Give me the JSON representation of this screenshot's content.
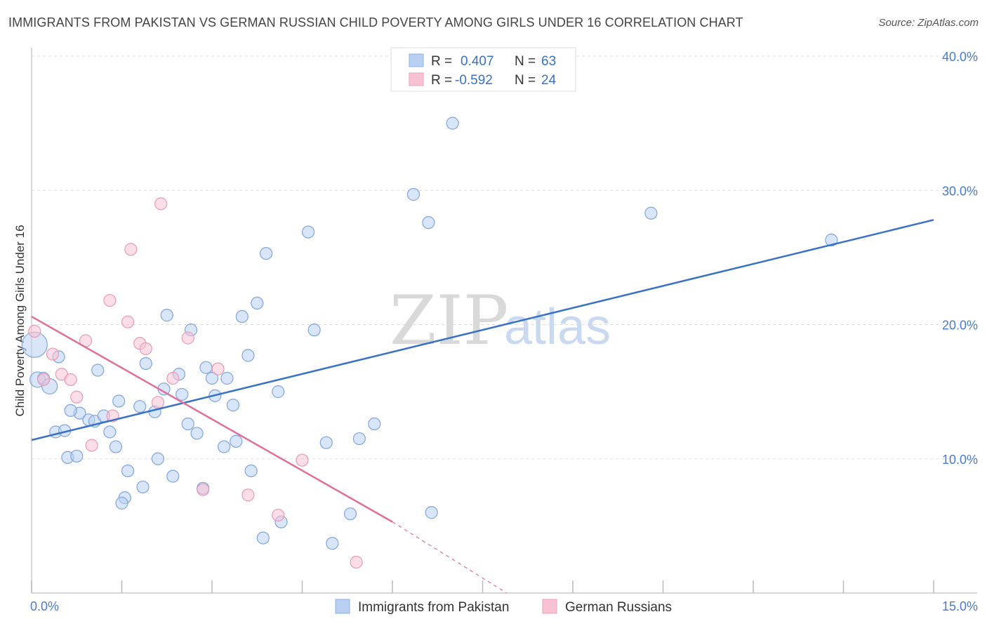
{
  "title": "IMMIGRANTS FROM PAKISTAN VS GERMAN RUSSIAN CHILD POVERTY AMONG GIRLS UNDER 16 CORRELATION CHART",
  "source": "Source: ZipAtlas.com",
  "watermark": {
    "zip": "ZIP",
    "atlas": "atlas"
  },
  "colors": {
    "blue": "#3a72c8",
    "pink": "#e07098",
    "blue_fill": "#b9d0f2",
    "pink_fill": "#f7c3d3",
    "grid": "#dddddd"
  },
  "stats_box": {
    "rows": [
      {
        "r_label": "R =",
        "r_value": "0.407",
        "n_label": "N =",
        "n_value": "63"
      },
      {
        "r_label": "R =",
        "r_value": "-0.592",
        "n_label": "N =",
        "n_value": "24"
      }
    ]
  },
  "chart_data": {
    "type": "scatter",
    "title": "IMMIGRANTS FROM PAKISTAN VS GERMAN RUSSIAN CHILD POVERTY AMONG GIRLS UNDER 16 CORRELATION CHART",
    "xlabel": "",
    "ylabel": "Child Poverty Among Girls Under 16",
    "xlim": [
      0,
      15
    ],
    "ylim": [
      0,
      40
    ],
    "x_tick_labels": [
      "0.0%",
      "15.0%"
    ],
    "y_ticks": [
      10,
      20,
      30,
      40
    ],
    "y_tick_labels": [
      "10.0%",
      "20.0%",
      "30.0%",
      "40.0%"
    ],
    "grid": true,
    "legend_position": "bottom-center",
    "series": [
      {
        "name": "Immigrants from Pakistan",
        "color": "#3a72c8",
        "r": 0.407,
        "n": 63,
        "trend": {
          "x": [
            0,
            15
          ],
          "y": [
            11.4,
            27.8
          ]
        },
        "points": [
          [
            0.05,
            18.5
          ],
          [
            0.1,
            15.9
          ],
          [
            0.2,
            16.0
          ],
          [
            0.3,
            15.4
          ],
          [
            0.45,
            17.6
          ],
          [
            0.4,
            12.0
          ],
          [
            0.55,
            12.1
          ],
          [
            0.6,
            10.1
          ],
          [
            0.75,
            10.2
          ],
          [
            0.8,
            13.4
          ],
          [
            0.65,
            13.6
          ],
          [
            0.95,
            12.9
          ],
          [
            1.05,
            12.8
          ],
          [
            1.1,
            16.6
          ],
          [
            1.2,
            13.2
          ],
          [
            1.3,
            12.0
          ],
          [
            1.4,
            10.9
          ],
          [
            1.45,
            14.3
          ],
          [
            1.6,
            9.1
          ],
          [
            1.55,
            7.1
          ],
          [
            1.5,
            6.7
          ],
          [
            1.8,
            13.9
          ],
          [
            1.85,
            7.9
          ],
          [
            1.9,
            17.1
          ],
          [
            2.05,
            13.5
          ],
          [
            2.1,
            10.0
          ],
          [
            2.2,
            15.2
          ],
          [
            2.25,
            20.7
          ],
          [
            2.35,
            8.7
          ],
          [
            2.45,
            16.3
          ],
          [
            2.5,
            14.8
          ],
          [
            2.6,
            12.6
          ],
          [
            2.65,
            19.6
          ],
          [
            2.75,
            11.9
          ],
          [
            2.85,
            7.8
          ],
          [
            2.9,
            16.8
          ],
          [
            3.0,
            16.0
          ],
          [
            3.05,
            14.7
          ],
          [
            3.2,
            10.9
          ],
          [
            3.25,
            16.0
          ],
          [
            3.35,
            14.0
          ],
          [
            3.4,
            11.3
          ],
          [
            3.5,
            20.6
          ],
          [
            3.6,
            17.7
          ],
          [
            3.65,
            9.1
          ],
          [
            3.75,
            21.6
          ],
          [
            3.85,
            4.1
          ],
          [
            3.9,
            25.3
          ],
          [
            4.1,
            15.0
          ],
          [
            4.15,
            5.3
          ],
          [
            4.6,
            26.9
          ],
          [
            4.7,
            19.6
          ],
          [
            4.9,
            11.2
          ],
          [
            5.0,
            3.7
          ],
          [
            5.3,
            5.9
          ],
          [
            5.45,
            11.5
          ],
          [
            5.7,
            12.6
          ],
          [
            6.35,
            29.7
          ],
          [
            6.6,
            27.6
          ],
          [
            6.65,
            6.0
          ],
          [
            7.0,
            35.0
          ],
          [
            10.3,
            28.3
          ],
          [
            13.3,
            26.3
          ]
        ]
      },
      {
        "name": "German Russians",
        "color": "#e07098",
        "r": -0.592,
        "n": 24,
        "trend": {
          "x": [
            0,
            6
          ],
          "y": [
            20.6,
            5.3
          ]
        },
        "trend_dashed": {
          "x": [
            6,
            7.9
          ],
          "y": [
            5.3,
            0.0
          ]
        },
        "points": [
          [
            0.05,
            19.5
          ],
          [
            0.2,
            15.9
          ],
          [
            0.35,
            17.8
          ],
          [
            0.5,
            16.3
          ],
          [
            0.65,
            15.9
          ],
          [
            0.75,
            14.6
          ],
          [
            0.9,
            18.8
          ],
          [
            1.0,
            11.0
          ],
          [
            1.3,
            21.8
          ],
          [
            1.35,
            13.2
          ],
          [
            1.6,
            20.2
          ],
          [
            1.65,
            25.6
          ],
          [
            1.8,
            18.6
          ],
          [
            1.9,
            18.2
          ],
          [
            2.1,
            14.2
          ],
          [
            2.15,
            29.0
          ],
          [
            2.35,
            16.0
          ],
          [
            2.6,
            19.0
          ],
          [
            2.85,
            7.7
          ],
          [
            3.1,
            16.7
          ],
          [
            3.6,
            7.3
          ],
          [
            4.1,
            5.8
          ],
          [
            4.5,
            9.9
          ],
          [
            5.4,
            2.3
          ]
        ]
      }
    ]
  }
}
